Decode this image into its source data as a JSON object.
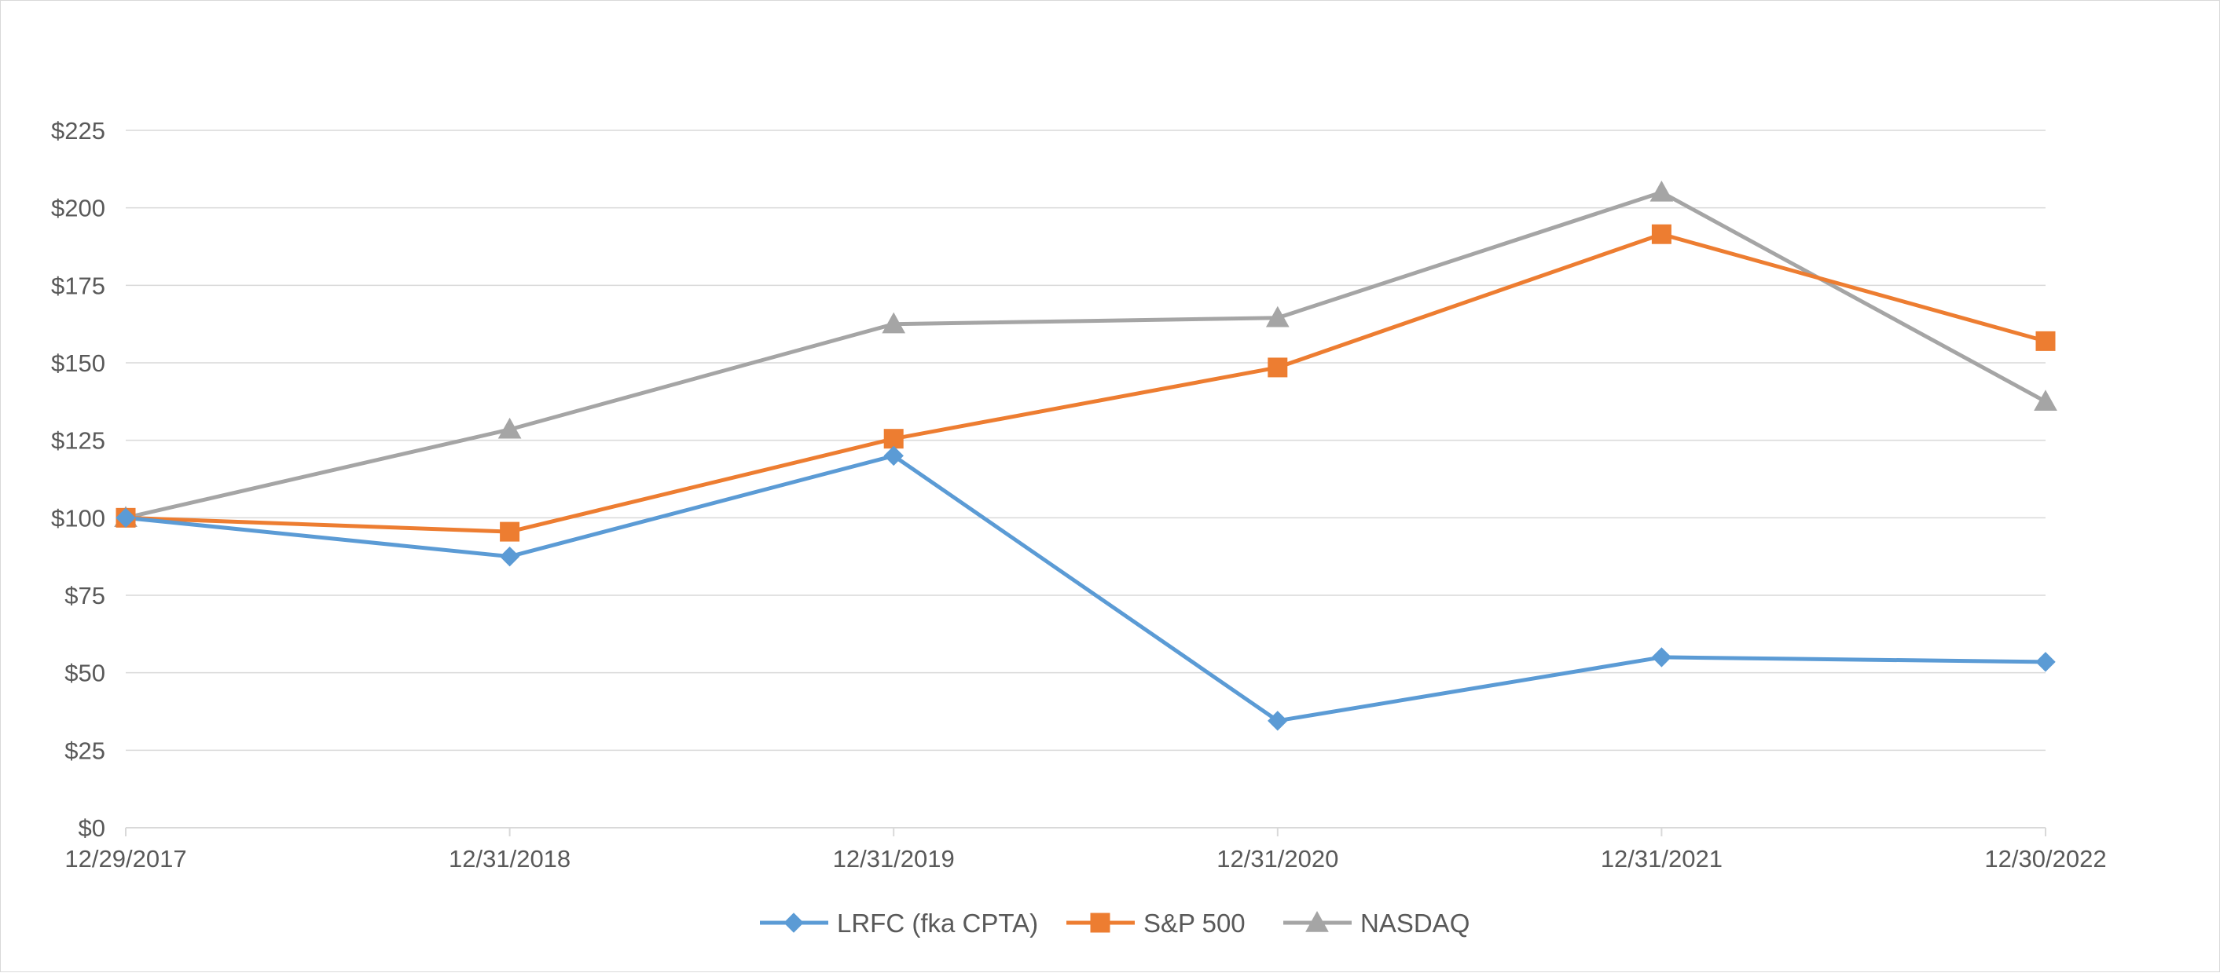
{
  "chart_data": {
    "type": "line",
    "title": "",
    "xlabel": "",
    "ylabel": "",
    "categories": [
      "12/29/2017",
      "12/31/2018",
      "12/31/2019",
      "12/31/2020",
      "12/31/2021",
      "12/30/2022"
    ],
    "ylim": [
      0,
      225
    ],
    "y_ticks": [
      0,
      25,
      50,
      75,
      100,
      125,
      150,
      175,
      200,
      225
    ],
    "y_tick_labels": [
      "$0",
      "$25",
      "$50",
      "$75",
      "$100",
      "$125",
      "$150",
      "$175",
      "$200",
      "$225"
    ],
    "grid": true,
    "legend_position": "bottom",
    "series": [
      {
        "name": "LRFC (fka CPTA)",
        "color": "#5b9bd5",
        "marker": "diamond",
        "values": [
          100,
          87.5,
          120,
          34.5,
          55,
          53.5
        ]
      },
      {
        "name": "S&P 500",
        "color": "#ed7d31",
        "marker": "square",
        "values": [
          100,
          95.5,
          125.5,
          148.5,
          191.5,
          157
        ]
      },
      {
        "name": "NASDAQ",
        "color": "#a5a5a5",
        "marker": "triangle",
        "values": [
          100,
          128.5,
          162.5,
          164.5,
          205,
          137.5
        ]
      }
    ]
  }
}
